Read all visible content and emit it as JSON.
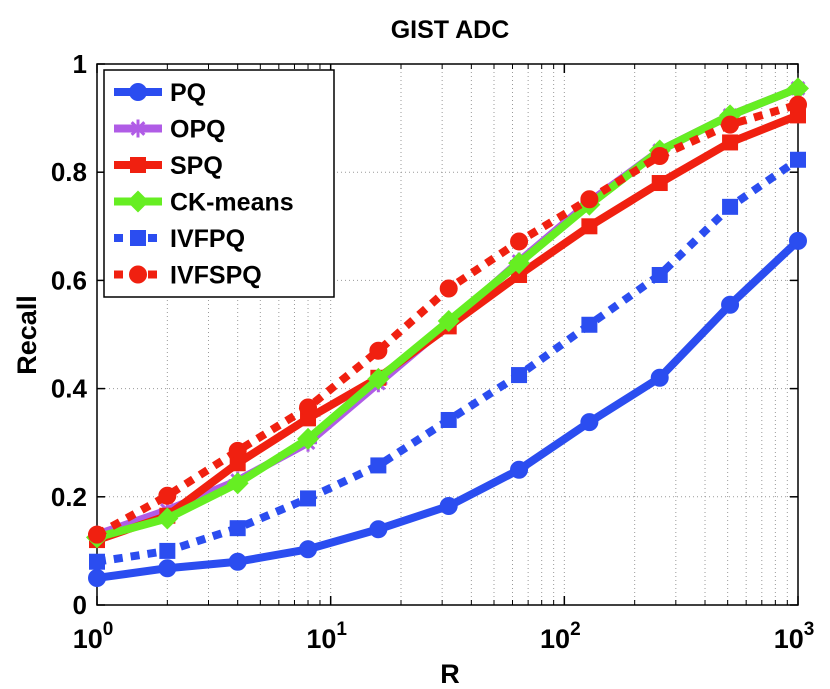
{
  "chart_data": {
    "type": "line",
    "title": "GIST ADC",
    "xlabel": "R",
    "ylabel": "Recall",
    "xscale": "log",
    "xlim": [
      1,
      1000
    ],
    "ylim": [
      0,
      1
    ],
    "grid": true,
    "legend_position": "top-left",
    "x": [
      1,
      2,
      4,
      8,
      16,
      32,
      64,
      128,
      256,
      512,
      1000
    ],
    "x_ticks": [
      {
        "value": 1,
        "base": "10",
        "exp": "0"
      },
      {
        "value": 10,
        "base": "10",
        "exp": "1"
      },
      {
        "value": 100,
        "base": "10",
        "exp": "2"
      },
      {
        "value": 1000,
        "base": "10",
        "exp": "3"
      }
    ],
    "y_ticks": [
      {
        "value": 0,
        "label": "0"
      },
      {
        "value": 0.2,
        "label": "0.2"
      },
      {
        "value": 0.4,
        "label": "0.4"
      },
      {
        "value": 0.6,
        "label": "0.6"
      },
      {
        "value": 0.8,
        "label": "0.8"
      },
      {
        "value": 1,
        "label": "1"
      }
    ],
    "series": [
      {
        "name": "PQ",
        "color": "#2b4df0",
        "dash": "solid",
        "marker": "circle",
        "values": [
          0.05,
          0.068,
          0.08,
          0.103,
          0.14,
          0.183,
          0.25,
          0.338,
          0.42,
          0.555,
          0.673
        ]
      },
      {
        "name": "OPQ",
        "color": "#b05ce6",
        "dash": "solid",
        "marker": "star",
        "values": [
          0.13,
          0.175,
          0.23,
          0.3,
          0.41,
          0.52,
          0.635,
          0.745,
          0.84,
          0.905,
          0.955
        ]
      },
      {
        "name": "SPQ",
        "color": "#f02010",
        "dash": "solid",
        "marker": "square",
        "values": [
          0.12,
          0.165,
          0.262,
          0.345,
          0.42,
          0.515,
          0.61,
          0.7,
          0.78,
          0.855,
          0.905
        ]
      },
      {
        "name": "CK-means",
        "color": "#66ee22",
        "dash": "solid",
        "marker": "diamond",
        "values": [
          0.125,
          0.16,
          0.225,
          0.307,
          0.418,
          0.525,
          0.632,
          0.74,
          0.84,
          0.905,
          0.955
        ]
      },
      {
        "name": "IVFPQ",
        "color": "#2b4df0",
        "dash": "dotted",
        "marker": "square",
        "values": [
          0.08,
          0.1,
          0.142,
          0.197,
          0.258,
          0.342,
          0.425,
          0.518,
          0.61,
          0.736,
          0.823
        ]
      },
      {
        "name": "IVFSPQ",
        "color": "#f02010",
        "dash": "dotted",
        "marker": "circle",
        "values": [
          0.13,
          0.202,
          0.285,
          0.365,
          0.47,
          0.585,
          0.672,
          0.75,
          0.83,
          0.888,
          0.925
        ]
      }
    ]
  }
}
